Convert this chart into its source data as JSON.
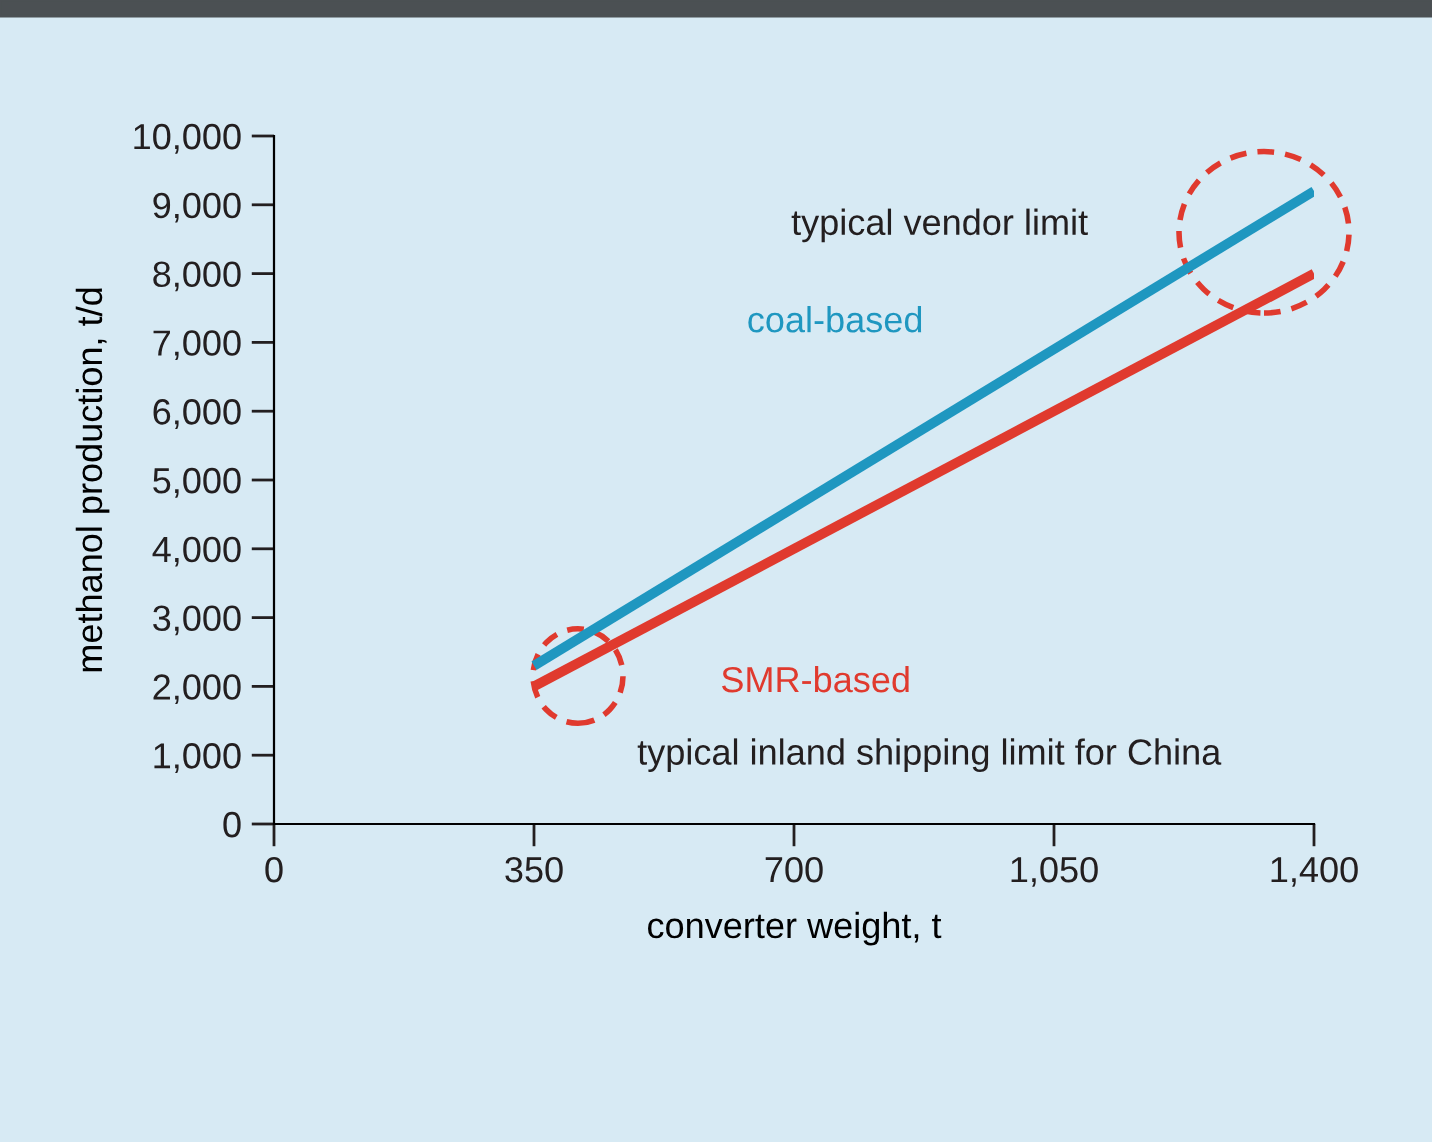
{
  "chart_data": {
    "type": "line",
    "xlabel": "converter weight, t",
    "ylabel": "methanol production, t/d",
    "xlim": [
      0,
      1400
    ],
    "ylim": [
      0,
      10000
    ],
    "xticks": [
      0,
      350,
      700,
      {
        "value": 1050,
        "label": "1,050"
      },
      {
        "value": 1400,
        "label": "1,400"
      }
    ],
    "yticks": [
      0,
      {
        "value": 1000,
        "label": "1,000"
      },
      {
        "value": 2000,
        "label": "2,000"
      },
      {
        "value": 3000,
        "label": "3,000"
      },
      {
        "value": 4000,
        "label": "4,000"
      },
      {
        "value": 5000,
        "label": "5,000"
      },
      {
        "value": 6000,
        "label": "6,000"
      },
      {
        "value": 7000,
        "label": "7,000"
      },
      {
        "value": 8000,
        "label": "8,000"
      },
      {
        "value": 9000,
        "label": "9,000"
      },
      {
        "value": 10000,
        "label": "10,000"
      }
    ],
    "x": [
      350,
      1400
    ],
    "series": [
      {
        "name": "coal-based",
        "color": "#1f97c0",
        "values": [
          2300,
          9200
        ]
      },
      {
        "name": "SMR-based",
        "color": "#e03a2e",
        "values": [
          2000,
          8000
        ]
      }
    ],
    "annotations": [
      "typical vendor limit",
      "typical inland shipping limit for China"
    ],
    "grid": false,
    "legend": false,
    "marker": "none",
    "line_style": "solid"
  }
}
